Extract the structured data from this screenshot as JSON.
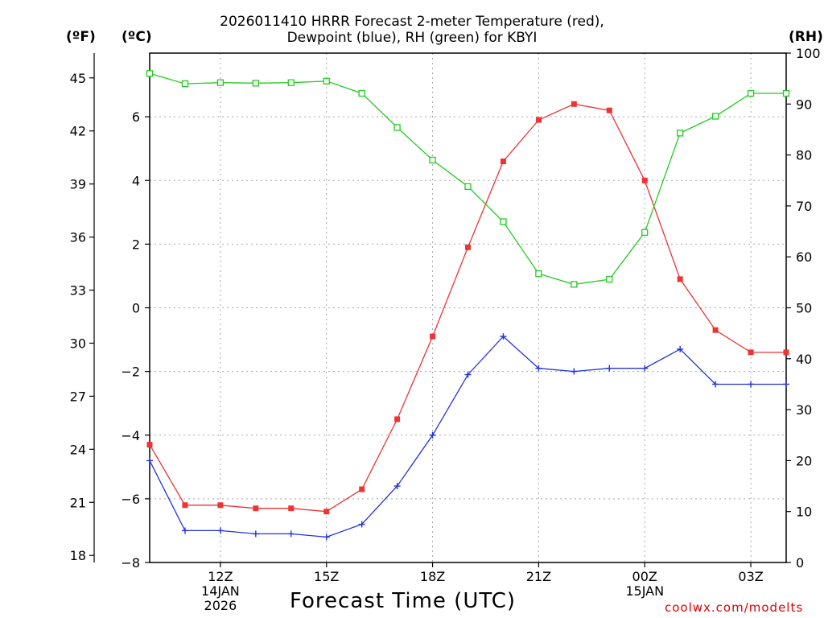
{
  "header": {
    "title_line1": "2026011410 HRRR Forecast 2-meter Temperature (red),",
    "title_line2": "Dewpoint (blue), RH (green) for KBYI"
  },
  "units": {
    "f": "(ºF)",
    "c": "(ºC)",
    "rh": "(RH)"
  },
  "footer": {
    "xlabel": "Forecast Time (UTC)",
    "credit": "coolwx.com/modelts"
  },
  "chart_data": {
    "type": "line",
    "title": "2026011410 HRRR Forecast 2-meter Temperature (red), Dewpoint (blue), RH (green) for KBYI",
    "xlabel": "Forecast Time (UTC)",
    "x_hours": [
      10,
      11,
      12,
      13,
      14,
      15,
      16,
      17,
      18,
      19,
      20,
      21,
      22,
      23,
      24,
      25,
      26,
      27,
      28
    ],
    "xlim": [
      10,
      28
    ],
    "x_ticks": [
      {
        "hour": 12,
        "label": "12Z",
        "sub1": "14JAN",
        "sub2": "2026"
      },
      {
        "hour": 15,
        "label": "15Z",
        "sub1": "",
        "sub2": ""
      },
      {
        "hour": 18,
        "label": "18Z",
        "sub1": "",
        "sub2": ""
      },
      {
        "hour": 21,
        "label": "21Z",
        "sub1": "",
        "sub2": ""
      },
      {
        "hour": 24,
        "label": "00Z",
        "sub1": "15JAN",
        "sub2": ""
      },
      {
        "hour": 27,
        "label": "03Z",
        "sub1": "",
        "sub2": ""
      }
    ],
    "left_axis_c": {
      "label": "(ºC)",
      "ylim": [
        -8,
        8
      ],
      "ticks": [
        "−8",
        "−6",
        "−4",
        "−2",
        "0",
        "2",
        "4",
        "6"
      ],
      "tick_values": [
        -8,
        -6,
        -4,
        -2,
        0,
        2,
        4,
        6
      ]
    },
    "left_axis_f": {
      "label": "(ºF)",
      "ylim": [
        17.6,
        46.4
      ],
      "ticks": [
        "18",
        "21",
        "24",
        "27",
        "30",
        "33",
        "36",
        "39",
        "42",
        "45"
      ],
      "tick_values": [
        18,
        21,
        24,
        27,
        30,
        33,
        36,
        39,
        42,
        45
      ]
    },
    "right_axis_rh": {
      "label": "(RH)",
      "ylim": [
        0,
        100
      ],
      "ticks": [
        "0",
        "10",
        "20",
        "30",
        "40",
        "50",
        "60",
        "70",
        "80",
        "90",
        "100"
      ],
      "tick_values": [
        0,
        10,
        20,
        30,
        40,
        50,
        60,
        70,
        80,
        90,
        100
      ]
    },
    "series": [
      {
        "name": "Temperature",
        "axis": "c",
        "color": "#ee3333",
        "marker": "filled-square",
        "values": [
          -4.3,
          -6.2,
          -6.2,
          -6.3,
          -6.3,
          -6.4,
          -5.7,
          -3.5,
          -0.9,
          1.9,
          4.6,
          5.9,
          6.4,
          6.2,
          4.0,
          0.9,
          -0.7,
          -1.4,
          -1.4
        ]
      },
      {
        "name": "Dewpoint",
        "axis": "c",
        "color": "#2233dd",
        "marker": "plus",
        "values": [
          -4.8,
          -7.0,
          -7.0,
          -7.1,
          -7.1,
          -7.2,
          -6.8,
          -5.6,
          -4.0,
          -2.1,
          -0.9,
          -1.9,
          -2.0,
          -1.9,
          -1.9,
          -1.3,
          -2.4,
          -2.4,
          -2.4
        ]
      },
      {
        "name": "RH",
        "axis": "rh",
        "color": "#22cc22",
        "marker": "open-square",
        "values": [
          96,
          94,
          94.2,
          94.1,
          94.2,
          94.5,
          92.1,
          85.4,
          79,
          73.8,
          66.9,
          56.7,
          54.6,
          55.6,
          64.8,
          84.3,
          87.6,
          92.1,
          92.1
        ]
      }
    ]
  }
}
